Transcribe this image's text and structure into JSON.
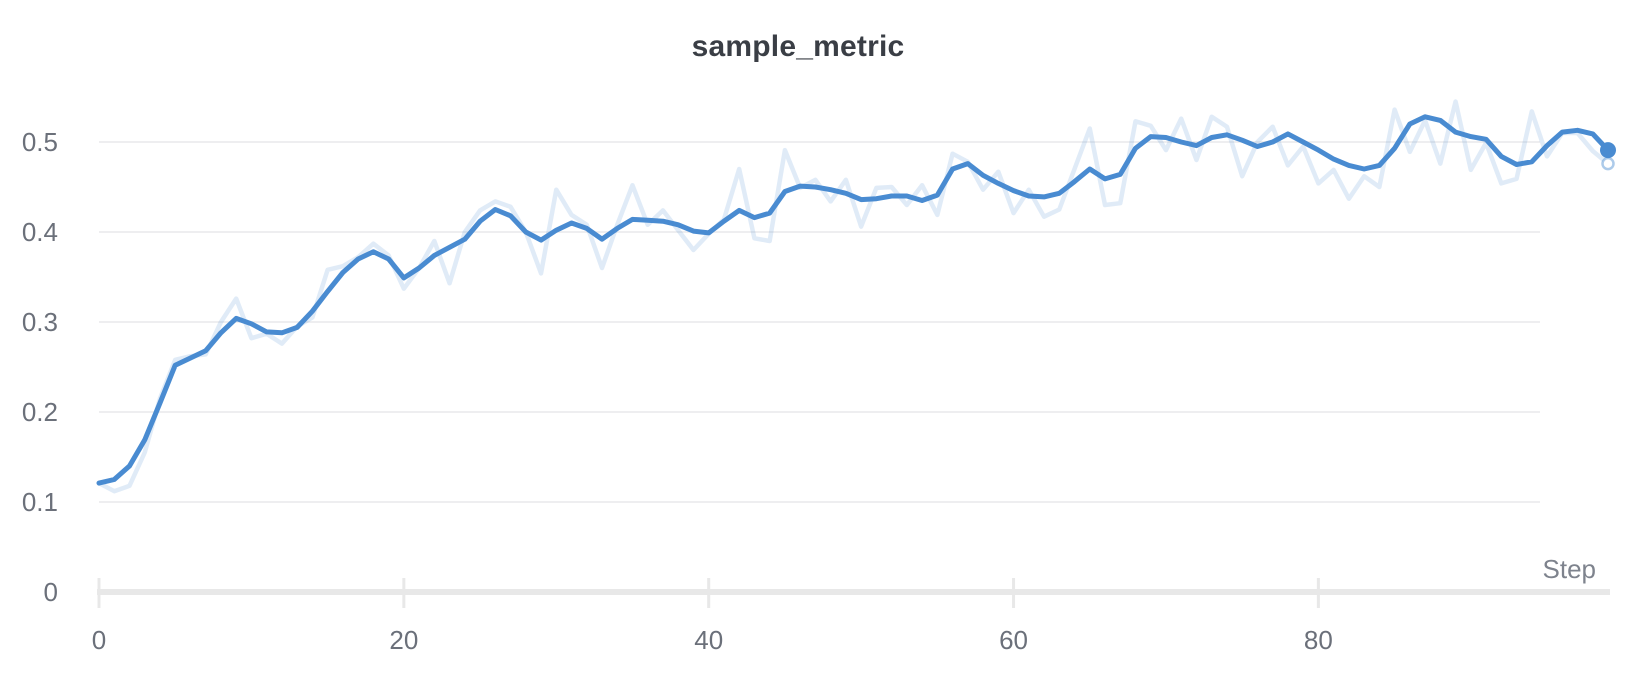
{
  "ui": {
    "title": "sample_metric"
  },
  "colors": {
    "accent_line": "#498bd1",
    "raw_line": "rgba(73,139,209,0.17)",
    "raw_dot_stroke": "rgba(73,139,209,0.45)",
    "gridline": "#e9e9eb",
    "axis_bar": "#e8e8e8",
    "title_text": "#3a3e45",
    "tick_text": "#6b707a",
    "axis_title_text": "#7e838d",
    "background": "#ffffff"
  },
  "chart_data": {
    "type": "line",
    "title": "sample_metric",
    "xlabel": "Step",
    "ylabel": "",
    "x_ticks": [
      0,
      20,
      40,
      60,
      80
    ],
    "y_ticks": [
      0,
      0.1,
      0.2,
      0.3,
      0.4,
      0.5
    ],
    "xlim": [
      0,
      99
    ],
    "ylim": [
      0,
      0.55
    ],
    "grid": "horizontal",
    "legend_position": "none",
    "x": [
      0,
      1,
      2,
      3,
      4,
      5,
      6,
      7,
      8,
      9,
      10,
      11,
      12,
      13,
      14,
      15,
      16,
      17,
      18,
      19,
      20,
      21,
      22,
      23,
      24,
      25,
      26,
      27,
      28,
      29,
      30,
      31,
      32,
      33,
      34,
      35,
      36,
      37,
      38,
      39,
      40,
      41,
      42,
      43,
      44,
      45,
      46,
      47,
      48,
      49,
      50,
      51,
      52,
      53,
      54,
      55,
      56,
      57,
      58,
      59,
      60,
      61,
      62,
      63,
      64,
      65,
      66,
      67,
      68,
      69,
      70,
      71,
      72,
      73,
      74,
      75,
      76,
      77,
      78,
      79,
      80,
      81,
      82,
      83,
      84,
      85,
      86,
      87,
      88,
      89,
      90,
      91,
      92,
      93,
      94,
      95,
      96,
      97,
      98,
      99
    ],
    "series": [
      {
        "name": "raw",
        "style": "faint",
        "values": [
          0.121,
          0.112,
          0.118,
          0.155,
          0.215,
          0.258,
          0.262,
          0.264,
          0.3,
          0.326,
          0.282,
          0.287,
          0.276,
          0.295,
          0.305,
          0.358,
          0.362,
          0.372,
          0.387,
          0.374,
          0.337,
          0.36,
          0.39,
          0.343,
          0.4,
          0.424,
          0.434,
          0.428,
          0.4,
          0.354,
          0.447,
          0.419,
          0.408,
          0.36,
          0.408,
          0.452,
          0.408,
          0.424,
          0.402,
          0.38,
          0.398,
          0.414,
          0.47,
          0.393,
          0.39,
          0.491,
          0.449,
          0.458,
          0.434,
          0.458,
          0.406,
          0.449,
          0.45,
          0.43,
          0.452,
          0.419,
          0.487,
          0.478,
          0.447,
          0.467,
          0.421,
          0.447,
          0.417,
          0.425,
          0.47,
          0.515,
          0.43,
          0.432,
          0.523,
          0.518,
          0.491,
          0.526,
          0.48,
          0.528,
          0.517,
          0.462,
          0.5,
          0.517,
          0.474,
          0.495,
          0.454,
          0.469,
          0.437,
          0.462,
          0.45,
          0.536,
          0.489,
          0.524,
          0.476,
          0.545,
          0.469,
          0.499,
          0.454,
          0.459,
          0.534,
          0.484,
          0.51,
          0.51,
          0.49,
          0.476
        ]
      },
      {
        "name": "smoothed",
        "style": "solid",
        "values": [
          0.121,
          0.125,
          0.14,
          0.169,
          0.21,
          0.252,
          0.26,
          0.268,
          0.288,
          0.304,
          0.298,
          0.289,
          0.288,
          0.294,
          0.312,
          0.334,
          0.355,
          0.37,
          0.378,
          0.37,
          0.349,
          0.36,
          0.374,
          0.383,
          0.392,
          0.412,
          0.425,
          0.418,
          0.4,
          0.391,
          0.402,
          0.41,
          0.404,
          0.392,
          0.404,
          0.414,
          0.413,
          0.412,
          0.408,
          0.401,
          0.399,
          0.412,
          0.424,
          0.416,
          0.421,
          0.445,
          0.451,
          0.45,
          0.447,
          0.443,
          0.436,
          0.437,
          0.44,
          0.44,
          0.435,
          0.441,
          0.47,
          0.476,
          0.463,
          0.454,
          0.446,
          0.44,
          0.439,
          0.443,
          0.456,
          0.47,
          0.459,
          0.464,
          0.493,
          0.506,
          0.505,
          0.5,
          0.496,
          0.505,
          0.508,
          0.502,
          0.495,
          0.5,
          0.509,
          0.5,
          0.491,
          0.481,
          0.474,
          0.47,
          0.474,
          0.493,
          0.52,
          0.528,
          0.524,
          0.511,
          0.506,
          0.503,
          0.484,
          0.475,
          0.478,
          0.496,
          0.511,
          0.513,
          0.509,
          0.491
        ]
      }
    ],
    "last_values": {
      "smoothed": 0.491,
      "raw": 0.476
    }
  }
}
